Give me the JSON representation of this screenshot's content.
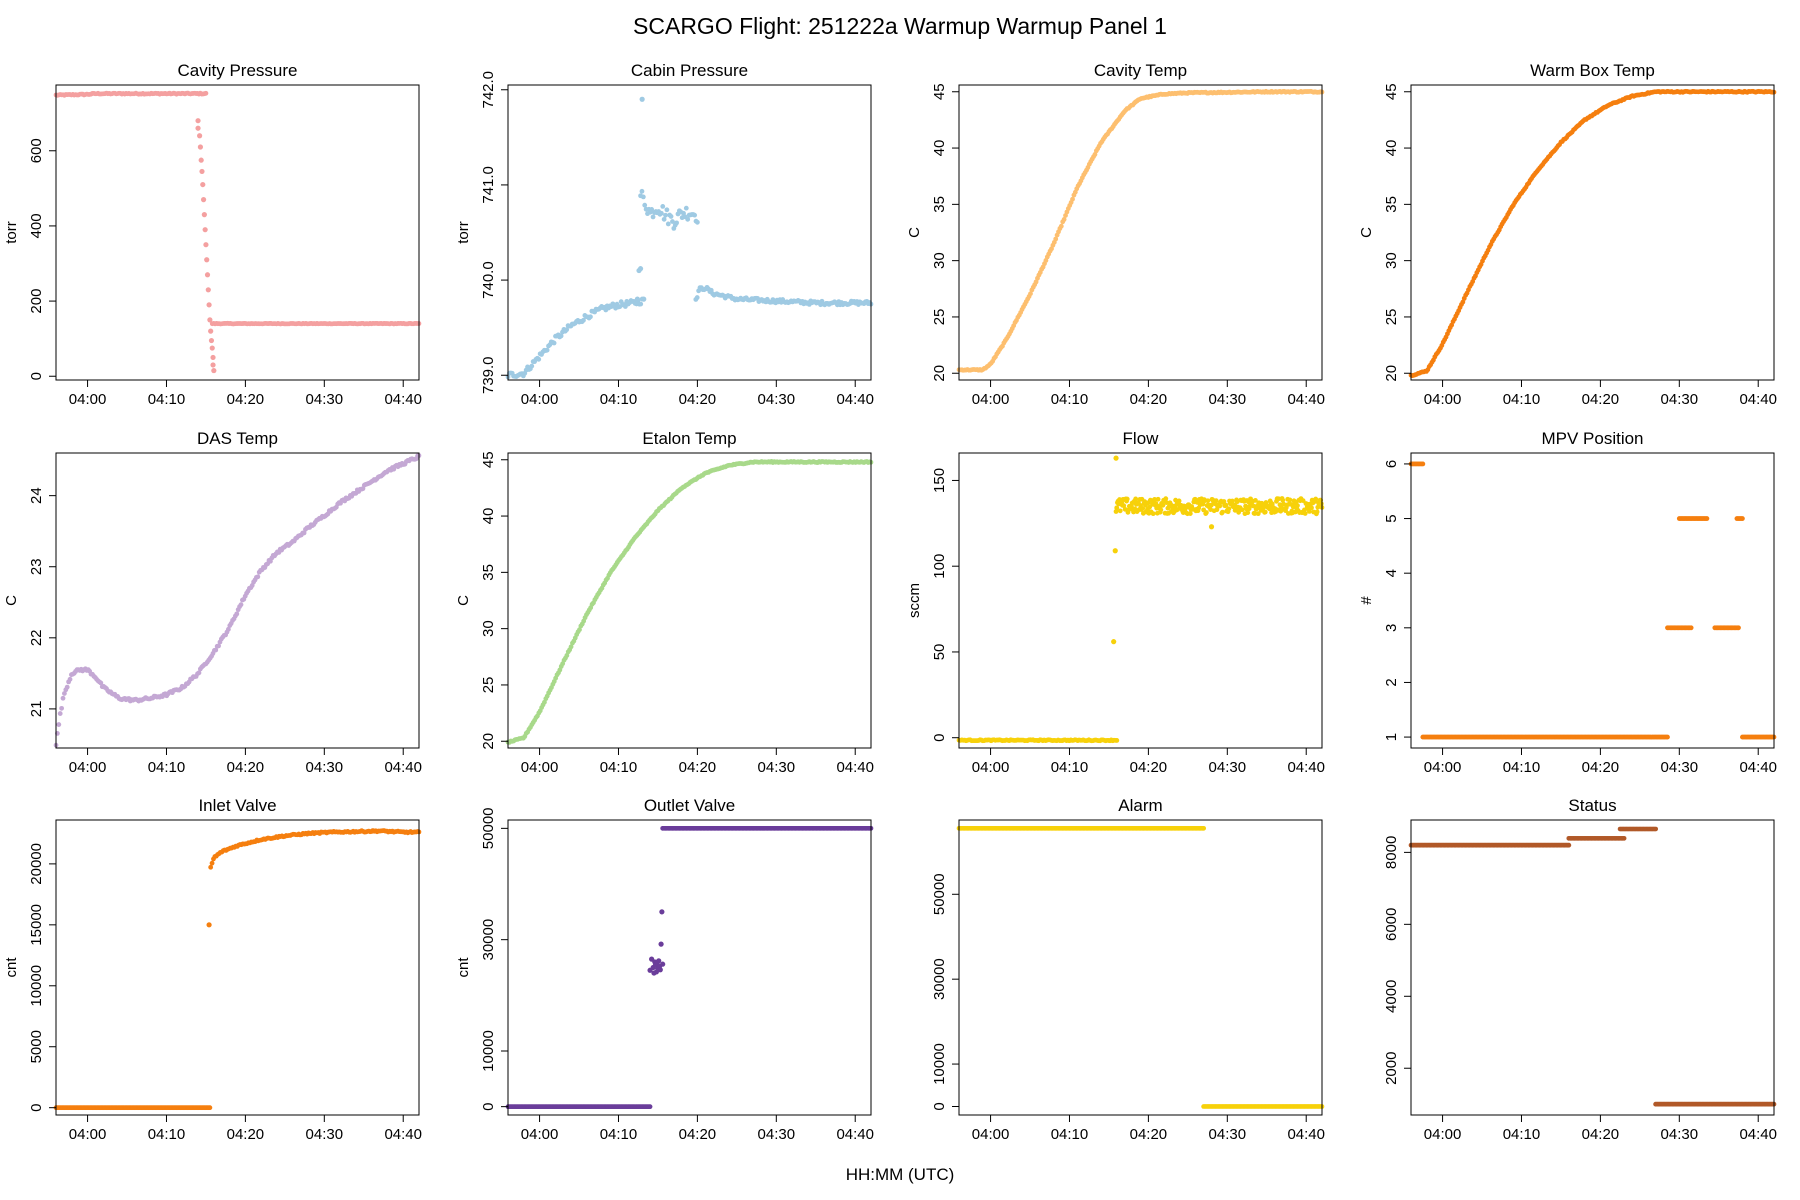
{
  "figure": {
    "title": "SCARGO Flight: 251222a  Warmup Warmup  Panel 1",
    "x_axis_label": "HH:MM (UTC)",
    "x_tick_labels": [
      "04:00",
      "04:10",
      "04:20",
      "04:30",
      "04:40"
    ]
  },
  "chart_data": [
    {
      "type": "scatter",
      "title": "Cavity Pressure",
      "ylabel": "torr",
      "color": "#F4A0A0",
      "xlim": [
        -4,
        42
      ],
      "ylim": [
        -10,
        775
      ],
      "yticks": [
        0,
        200,
        400,
        600
      ],
      "ytick_labels": [
        "0",
        "200",
        "400",
        "600"
      ],
      "series": [
        {
          "mode": "line",
          "x": [
            -4,
            0,
            1,
            15
          ],
          "y": [
            748,
            750,
            752,
            752
          ],
          "jitter": 1.5
        },
        {
          "mode": "points",
          "x": [
            14,
            14,
            14.2,
            14.3,
            14.4,
            14.5,
            14.6,
            14.7,
            14.8,
            14.9,
            15,
            15.1,
            15.2,
            15.3,
            15.4,
            15.5,
            15.6,
            15.7,
            15.8,
            15.9,
            15.9,
            16
          ],
          "y": [
            680,
            660,
            640,
            610,
            575,
            545,
            510,
            470,
            430,
            390,
            350,
            310,
            270,
            230,
            190,
            150,
            120,
            95,
            75,
            50,
            30,
            15
          ]
        },
        {
          "mode": "line",
          "x": [
            15.8,
            42
          ],
          "y": [
            140,
            140
          ],
          "jitter": 0.8
        }
      ]
    },
    {
      "type": "scatter",
      "title": "Cabin Pressure",
      "ylabel": "torr",
      "color": "#9FCAE3",
      "xlim": [
        -4,
        42
      ],
      "ylim": [
        738.95,
        742.05
      ],
      "yticks": [
        739.0,
        740.0,
        741.0,
        742.0
      ],
      "ytick_labels": [
        "739.0",
        "740.0",
        "741.0",
        "742.0"
      ],
      "series": [
        {
          "mode": "line",
          "x": [
            -4,
            -2,
            0,
            2,
            4,
            6,
            8,
            10,
            12,
            13
          ],
          "y": [
            739.0,
            739.02,
            739.2,
            739.38,
            739.52,
            739.62,
            739.7,
            739.74,
            739.76,
            739.78
          ],
          "jitter": 0.03
        },
        {
          "mode": "points",
          "x": [
            12.4,
            12.6,
            12.8,
            13.0,
            13.2
          ],
          "y": [
            739.8,
            740.1,
            740.12,
            741.9,
            739.8
          ]
        },
        {
          "mode": "line",
          "x": [
            12.8,
            13.5,
            14,
            15,
            16,
            17,
            18,
            19,
            20
          ],
          "y": [
            740.9,
            740.8,
            740.7,
            740.78,
            740.68,
            740.62,
            740.7,
            740.72,
            740.68
          ],
          "jitter": 0.08
        },
        {
          "mode": "line",
          "x": [
            19.8,
            20.2,
            21,
            22,
            25,
            30,
            35,
            42
          ],
          "y": [
            739.78,
            739.9,
            739.92,
            739.86,
            739.8,
            739.78,
            739.76,
            739.76
          ],
          "jitter": 0.02
        }
      ]
    },
    {
      "type": "scatter",
      "title": "Cavity Temp",
      "ylabel": "C",
      "color": "#FDBF6F",
      "xlim": [
        -4,
        42
      ],
      "ylim": [
        19.4,
        45.6
      ],
      "yticks": [
        20,
        25,
        30,
        35,
        40,
        45
      ],
      "ytick_labels": [
        "20",
        "25",
        "30",
        "35",
        "40",
        "45"
      ],
      "series": [
        {
          "mode": "line",
          "x": [
            -4,
            -1,
            0,
            2,
            5,
            8,
            11,
            14,
            17,
            19,
            22,
            25,
            30,
            35,
            42
          ],
          "y": [
            20.3,
            20.3,
            20.8,
            23.0,
            27.0,
            31.5,
            36.5,
            40.5,
            43.3,
            44.4,
            44.8,
            44.9,
            44.95,
            45.0,
            45.0
          ],
          "jitter": 0.05
        }
      ]
    },
    {
      "type": "scatter",
      "title": "Warm Box Temp",
      "ylabel": "C",
      "color": "#F57F0F",
      "xlim": [
        -4,
        42
      ],
      "ylim": [
        19.4,
        45.6
      ],
      "yticks": [
        20,
        25,
        30,
        35,
        40,
        45
      ],
      "ytick_labels": [
        "20",
        "25",
        "30",
        "35",
        "40",
        "45"
      ],
      "series": [
        {
          "mode": "line",
          "x": [
            -4,
            -2,
            0,
            3,
            6,
            9,
            12,
            15,
            18,
            21,
            24,
            27,
            28,
            35,
            42
          ],
          "y": [
            19.8,
            20.2,
            22.6,
            27.0,
            31.3,
            35.0,
            38.0,
            40.5,
            42.5,
            43.8,
            44.6,
            45.0,
            45.0,
            45.0,
            45.0
          ],
          "jitter": 0.05
        }
      ]
    },
    {
      "type": "scatter",
      "title": "DAS Temp",
      "ylabel": "C",
      "color": "#C4A8D4",
      "xlim": [
        -4,
        42
      ],
      "ylim": [
        20.45,
        24.6
      ],
      "yticks": [
        21,
        22,
        23,
        24
      ],
      "ytick_labels": [
        "21",
        "22",
        "23",
        "24"
      ],
      "series": [
        {
          "mode": "line",
          "x": [
            -4,
            -3.5,
            -3,
            -2,
            -1,
            0,
            1,
            2,
            4,
            6,
            8,
            10,
            12,
            14,
            16,
            18,
            20,
            22,
            24,
            26,
            28,
            30,
            32,
            34,
            36,
            38,
            40,
            42
          ],
          "y": [
            20.5,
            20.9,
            21.2,
            21.5,
            21.55,
            21.55,
            21.45,
            21.3,
            21.15,
            21.12,
            21.15,
            21.2,
            21.3,
            21.5,
            21.8,
            22.15,
            22.6,
            22.95,
            23.2,
            23.35,
            23.55,
            23.72,
            23.9,
            24.05,
            24.2,
            24.35,
            24.45,
            24.55
          ],
          "jitter": 0.02
        }
      ]
    },
    {
      "type": "scatter",
      "title": "Etalon Temp",
      "ylabel": "C",
      "color": "#A8D98A",
      "xlim": [
        -4,
        42
      ],
      "ylim": [
        19.4,
        45.6
      ],
      "yticks": [
        20,
        25,
        30,
        35,
        40,
        45
      ],
      "ytick_labels": [
        "20",
        "25",
        "30",
        "35",
        "40",
        "45"
      ],
      "series": [
        {
          "mode": "line",
          "x": [
            -4,
            -2,
            0,
            3,
            6,
            9,
            12,
            15,
            18,
            21,
            24,
            27,
            29,
            35,
            42
          ],
          "y": [
            19.9,
            20.3,
            22.6,
            27.0,
            31.3,
            35.0,
            38.0,
            40.5,
            42.5,
            43.8,
            44.5,
            44.8,
            44.8,
            44.8,
            44.8
          ],
          "jitter": 0.05
        }
      ]
    },
    {
      "type": "scatter",
      "title": "Flow",
      "ylabel": "sccm",
      "color": "#F7D10A",
      "xlim": [
        -4,
        42
      ],
      "ylim": [
        -6,
        166
      ],
      "yticks": [
        0,
        50,
        100,
        150
      ],
      "ytick_labels": [
        "0",
        "50",
        "100",
        "150"
      ],
      "series": [
        {
          "mode": "line",
          "x": [
            -4,
            16
          ],
          "y": [
            -1.5,
            -1.5
          ],
          "jitter": 0.3
        },
        {
          "mode": "points",
          "x": [
            15.6,
            15.8,
            15.9
          ],
          "y": [
            56,
            109,
            163
          ]
        },
        {
          "mode": "band",
          "x": [
            15.9,
            42
          ],
          "y": [
            135,
            135
          ],
          "jitter": 4.5
        },
        {
          "mode": "points",
          "x": [
            28
          ],
          "y": [
            123
          ]
        }
      ]
    },
    {
      "type": "scatter",
      "title": "MPV Position",
      "ylabel": "#",
      "color": "#F57F0F",
      "xlim": [
        -4,
        42
      ],
      "ylim": [
        0.8,
        6.2
      ],
      "yticks": [
        1,
        2,
        3,
        4,
        5,
        6
      ],
      "ytick_labels": [
        "1",
        "2",
        "3",
        "4",
        "5",
        "6"
      ],
      "series": [
        {
          "mode": "line",
          "x": [
            -4,
            -2.5
          ],
          "y": [
            6,
            6
          ]
        },
        {
          "mode": "line",
          "x": [
            -2.5,
            28.5
          ],
          "y": [
            1,
            1
          ]
        },
        {
          "mode": "line",
          "x": [
            28.5,
            31.5
          ],
          "y": [
            3,
            3
          ]
        },
        {
          "mode": "line",
          "x": [
            30,
            33.5
          ],
          "y": [
            5,
            5
          ]
        },
        {
          "mode": "line",
          "x": [
            34.5,
            37.5
          ],
          "y": [
            3,
            3
          ]
        },
        {
          "mode": "line",
          "x": [
            37.3,
            38.0
          ],
          "y": [
            5,
            5
          ]
        },
        {
          "mode": "line",
          "x": [
            38,
            42
          ],
          "y": [
            1,
            1
          ]
        }
      ]
    },
    {
      "type": "scatter",
      "title": "Inlet Valve",
      "ylabel": "cnt",
      "color": "#F57F0F",
      "xlim": [
        -4,
        42
      ],
      "ylim": [
        -600,
        23600
      ],
      "yticks": [
        0,
        5000,
        10000,
        15000,
        20000
      ],
      "ytick_labels": [
        "0",
        "5000",
        "10000",
        "15000",
        "20000"
      ],
      "series": [
        {
          "mode": "line",
          "x": [
            -4,
            15.5
          ],
          "y": [
            0,
            0
          ]
        },
        {
          "mode": "points",
          "x": [
            15.4
          ],
          "y": [
            15000
          ]
        },
        {
          "mode": "line",
          "x": [
            15.6,
            16,
            17,
            19,
            22,
            25,
            28,
            31,
            34,
            37,
            40,
            42
          ],
          "y": [
            19700,
            20500,
            21000,
            21500,
            22000,
            22300,
            22500,
            22600,
            22650,
            22700,
            22600,
            22600
          ],
          "jitter": 60
        }
      ]
    },
    {
      "type": "scatter",
      "title": "Outlet Valve",
      "ylabel": "cnt",
      "color": "#6A3D9A",
      "xlim": [
        -4,
        42
      ],
      "ylim": [
        -1500,
        51500
      ],
      "yticks": [
        0,
        10000,
        30000,
        50000
      ],
      "ytick_labels": [
        "0",
        "10000",
        "30000",
        "50000"
      ],
      "series": [
        {
          "mode": "line",
          "x": [
            -4,
            14
          ],
          "y": [
            0,
            0
          ]
        },
        {
          "mode": "points",
          "x": [
            14,
            14.2,
            14.4,
            14.5,
            14.6,
            14.7,
            14.8,
            14.9,
            15.0,
            15.1,
            15.2,
            15.3,
            15.4,
            15.5,
            15.6
          ],
          "y": [
            24500,
            26500,
            25000,
            24000,
            26000,
            25500,
            24200,
            25800,
            24800,
            26200,
            25200,
            24600,
            29200,
            35000,
            25600
          ]
        },
        {
          "mode": "line",
          "x": [
            15.6,
            42
          ],
          "y": [
            50000,
            50000
          ]
        }
      ]
    },
    {
      "type": "scatter",
      "title": "Alarm",
      "ylabel": "",
      "color": "#F7D10A",
      "xlim": [
        -4,
        42
      ],
      "ylim": [
        -2000,
        67500
      ],
      "yticks": [
        0,
        10000,
        30000,
        50000
      ],
      "ytick_labels": [
        "0",
        "10000",
        "30000",
        "50000"
      ],
      "series": [
        {
          "mode": "line",
          "x": [
            -4,
            27
          ],
          "y": [
            65535,
            65535
          ]
        },
        {
          "mode": "line",
          "x": [
            27,
            42
          ],
          "y": [
            0,
            0
          ]
        }
      ]
    },
    {
      "type": "scatter",
      "title": "Status",
      "ylabel": "",
      "color": "#B15928",
      "xlim": [
        -4,
        42
      ],
      "ylim": [
        700,
        8900
      ],
      "yticks": [
        2000,
        4000,
        6000,
        8000
      ],
      "ytick_labels": [
        "2000",
        "4000",
        "6000",
        "8000"
      ],
      "series": [
        {
          "mode": "line",
          "x": [
            -4,
            16
          ],
          "y": [
            8200,
            8200
          ]
        },
        {
          "mode": "line",
          "x": [
            16,
            23
          ],
          "y": [
            8390,
            8390
          ]
        },
        {
          "mode": "line",
          "x": [
            22.5,
            27
          ],
          "y": [
            8650,
            8650
          ]
        },
        {
          "mode": "line",
          "x": [
            27,
            42
          ],
          "y": [
            1000,
            1000
          ]
        }
      ]
    }
  ]
}
